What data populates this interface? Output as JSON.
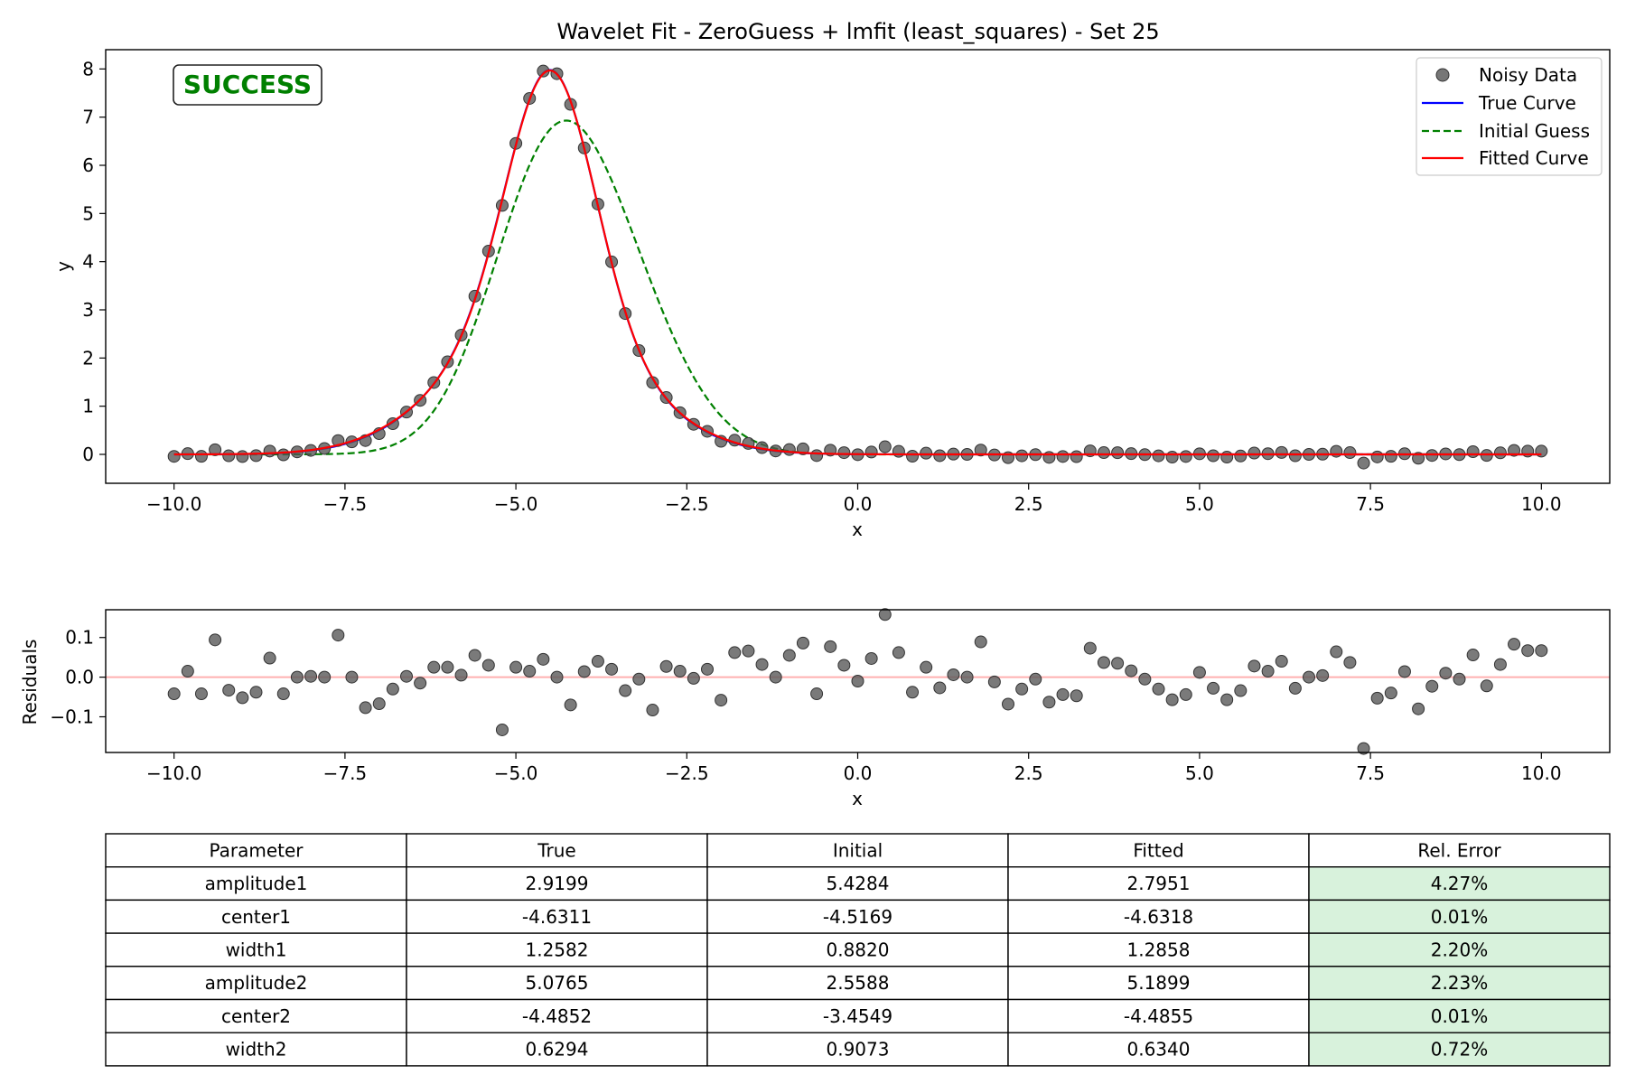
{
  "chart_data": [
    {
      "type": "scatter+line",
      "title": "Wavelet Fit - ZeroGuess + lmfit (least_squares) - Set 25",
      "xlabel": "x",
      "ylabel": "y",
      "xlim": [
        -11.0,
        11.0
      ],
      "ylim": [
        -0.6,
        8.4
      ],
      "xticks": [
        -10.0,
        -7.5,
        -5.0,
        -2.5,
        0.0,
        2.5,
        5.0,
        7.5,
        10.0
      ],
      "xtick_labels": [
        "−10.0",
        "−7.5",
        "−5.0",
        "−2.5",
        "0.0",
        "2.5",
        "5.0",
        "7.5",
        "10.0"
      ],
      "yticks": [
        0,
        1,
        2,
        3,
        4,
        5,
        6,
        7,
        8
      ],
      "ytick_labels": [
        "0",
        "1",
        "2",
        "3",
        "4",
        "5",
        "6",
        "7",
        "8"
      ],
      "grid": false,
      "legend_position": "top-right",
      "badge": "SUCCESS",
      "series": [
        {
          "name": "Noisy Data",
          "kind": "scatter",
          "color": "#555555",
          "x_range": [
            -10,
            10
          ],
          "n": 101
        },
        {
          "name": "True Curve",
          "kind": "line",
          "color": "#0000ff",
          "params": {
            "amplitude1": 2.9199,
            "center1": -4.6311,
            "width1": 1.2582,
            "amplitude2": 5.0765,
            "center2": -4.4852,
            "width2": 0.6294
          }
        },
        {
          "name": "Initial Guess",
          "kind": "dashed-line",
          "color": "#008000",
          "params": {
            "amplitude1": 5.4284,
            "center1": -4.5169,
            "width1": 0.882,
            "amplitude2": 2.5588,
            "center2": -3.4549,
            "width2": 0.9073
          }
        },
        {
          "name": "Fitted Curve",
          "kind": "line",
          "color": "#ff0000",
          "params": {
            "amplitude1": 2.7951,
            "center1": -4.6318,
            "width1": 1.2858,
            "amplitude2": 5.1899,
            "center2": -4.4855,
            "width2": 0.634
          }
        }
      ]
    },
    {
      "type": "scatter",
      "title": "",
      "xlabel": "x",
      "ylabel": "Residuals",
      "xlim": [
        -11.0,
        11.0
      ],
      "ylim": [
        -0.19,
        0.17
      ],
      "xticks": [
        -10.0,
        -7.5,
        -5.0,
        -2.5,
        0.0,
        2.5,
        5.0,
        7.5,
        10.0
      ],
      "xtick_labels": [
        "−10.0",
        "−7.5",
        "−5.0",
        "−2.5",
        "0.0",
        "2.5",
        "5.0",
        "7.5",
        "10.0"
      ],
      "yticks": [
        0.1,
        0.0,
        -0.1
      ],
      "ytick_labels": [
        "0.1",
        "0.0",
        "−0.1"
      ],
      "zero_line_color": "#ffb0b0",
      "marker_color": "#555555",
      "x_range": [
        -10,
        10
      ],
      "residuals": [
        -0.042,
        0.015,
        -0.042,
        0.094,
        -0.033,
        -0.052,
        -0.038,
        0.048,
        -0.042,
        0.0,
        0.002,
        0.0,
        0.106,
        0.0,
        -0.077,
        -0.067,
        -0.03,
        0.002,
        -0.015,
        0.025,
        0.025,
        0.005,
        0.055,
        0.03,
        -0.133,
        0.025,
        0.015,
        0.045,
        0.0,
        -0.07,
        0.014,
        0.04,
        0.02,
        -0.034,
        -0.005,
        -0.083,
        0.027,
        0.015,
        -0.003,
        0.02,
        -0.058,
        0.062,
        0.066,
        0.032,
        0.0,
        0.055,
        0.086,
        -0.042,
        0.077,
        0.03,
        -0.01,
        0.047,
        0.158,
        0.062,
        -0.038,
        0.025,
        -0.027,
        0.006,
        0.0,
        0.089,
        -0.012,
        -0.068,
        -0.03,
        -0.005,
        -0.063,
        -0.044,
        -0.047,
        0.073,
        0.037,
        0.035,
        0.016,
        -0.005,
        -0.03,
        -0.057,
        -0.044,
        0.012,
        -0.028,
        -0.057,
        -0.034,
        0.028,
        0.015,
        0.04,
        -0.028,
        0.0,
        0.004,
        0.064,
        0.037,
        -0.18,
        -0.053,
        -0.04,
        0.014,
        -0.08,
        -0.023,
        0.01,
        -0.005,
        0.056,
        -0.022,
        0.032,
        0.083,
        0.067,
        0.067
      ]
    },
    {
      "type": "table",
      "columns": [
        "Parameter",
        "True",
        "Initial",
        "Fitted",
        "Rel. Error"
      ],
      "rows": [
        [
          "amplitude1",
          "2.9199",
          "5.4284",
          "2.7951",
          "4.27%"
        ],
        [
          "center1",
          "-4.6311",
          "-4.5169",
          "-4.6318",
          "0.01%"
        ],
        [
          "width1",
          "1.2582",
          "0.8820",
          "1.2858",
          "2.20%"
        ],
        [
          "amplitude2",
          "5.0765",
          "2.5588",
          "5.1899",
          "2.23%"
        ],
        [
          "center2",
          "-4.4852",
          "-3.4549",
          "-4.4855",
          "0.01%"
        ],
        [
          "width2",
          "0.6294",
          "0.9073",
          "0.6340",
          "0.72%"
        ]
      ],
      "error_cell_color": "#d8f2dc"
    }
  ]
}
